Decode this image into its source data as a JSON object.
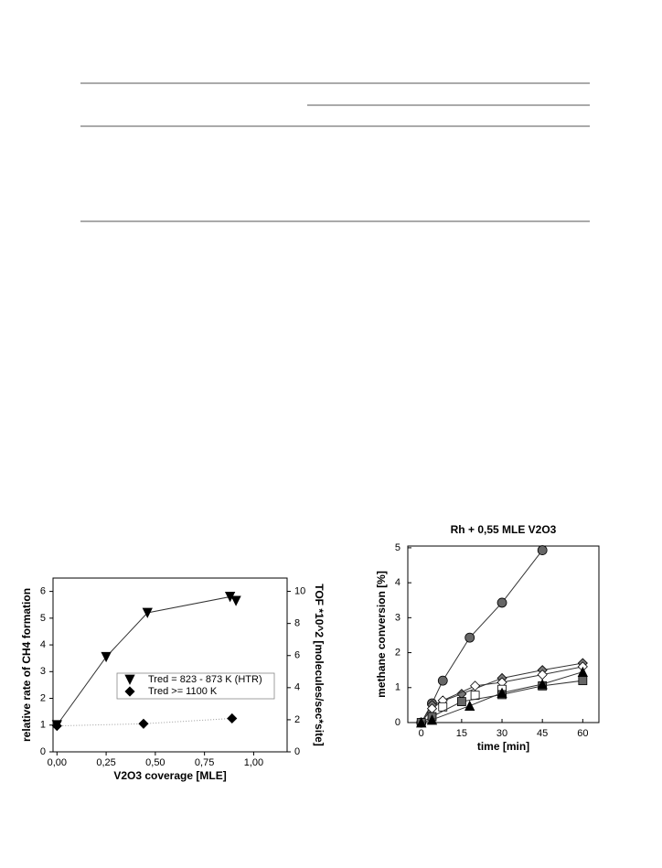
{
  "chart_data": [
    {
      "type": "scatter",
      "x_label": "V2O3 coverage [MLE]",
      "y_label": "relative rate of CH4 formation",
      "y2_label": "TOF *10^2 [molecules/sec*site]",
      "xlim": [
        -0.02,
        1.17
      ],
      "ylim": [
        0,
        6.5
      ],
      "y2lim": [
        0,
        10.83
      ],
      "xticks": [
        {
          "value": 0,
          "label": "0,00"
        },
        {
          "value": 0.25,
          "label": "0,25"
        },
        {
          "value": 0.5,
          "label": "0,50"
        },
        {
          "value": 0.75,
          "label": "0,75"
        },
        {
          "value": 1,
          "label": "1,00"
        }
      ],
      "yticks": [
        0,
        1,
        2,
        3,
        4,
        5,
        6
      ],
      "y2ticks": [
        0,
        2,
        4,
        6,
        8,
        10
      ],
      "legend": "center-right",
      "series": [
        {
          "name": "Tred = 823 - 873 K (HTR)",
          "color": "#000000",
          "marker": "triangle-down",
          "line": "solid",
          "x": [
            0,
            0.25,
            0.46,
            0.88,
            0.91
          ],
          "values": [
            1.0,
            3.55,
            5.2,
            5.8,
            5.65
          ]
        },
        {
          "name": "Tred >= 1100 K",
          "color": "#000000",
          "marker": "diamond",
          "line": "dotted",
          "x": [
            0,
            0.44,
            0.89
          ],
          "values": [
            0.97,
            1.05,
            1.25
          ]
        }
      ]
    },
    {
      "type": "scatter",
      "title": "Rh + 0,55 MLE V2O3",
      "x_label": "time [min]",
      "y_label": "methane conversion [%]",
      "xlim": [
        -5,
        66
      ],
      "ylim": [
        0,
        5.05
      ],
      "xticks": [
        0,
        15,
        30,
        45,
        60
      ],
      "yticks": [
        0,
        1,
        2,
        3,
        4,
        5
      ],
      "series": [
        {
          "color": "#666666",
          "marker": "circle",
          "line": "solid",
          "x": [
            0,
            4,
            8,
            18,
            30,
            45
          ],
          "values": [
            0,
            0.55,
            1.2,
            2.43,
            3.43,
            4.93
          ]
        },
        {
          "color": "#777777",
          "marker": "diamond",
          "line": "solid",
          "x": [
            0,
            4,
            15,
            30,
            45,
            60
          ],
          "values": [
            0,
            0.5,
            0.82,
            1.27,
            1.5,
            1.7
          ]
        },
        {
          "color": "#ffffff",
          "marker": "diamond",
          "line": "solid",
          "x": [
            0,
            4,
            8,
            20,
            30,
            45,
            60
          ],
          "values": [
            0,
            0.4,
            0.63,
            1.05,
            1.15,
            1.37,
            1.6
          ]
        },
        {
          "color": "#ffffff",
          "marker": "square",
          "line": "none",
          "x": [
            8,
            20,
            30
          ],
          "values": [
            0.45,
            0.78,
            0.95
          ]
        },
        {
          "color": "#666666",
          "marker": "square",
          "line": "solid",
          "x": [
            0,
            4,
            15,
            30,
            45,
            60
          ],
          "values": [
            0,
            0.17,
            0.6,
            0.8,
            1.05,
            1.2
          ]
        },
        {
          "color": "#000000",
          "marker": "triangle-up",
          "line": "solid",
          "x": [
            0,
            4,
            18,
            30,
            45,
            60
          ],
          "values": [
            0,
            0.08,
            0.48,
            0.85,
            1.1,
            1.45
          ]
        }
      ]
    }
  ]
}
